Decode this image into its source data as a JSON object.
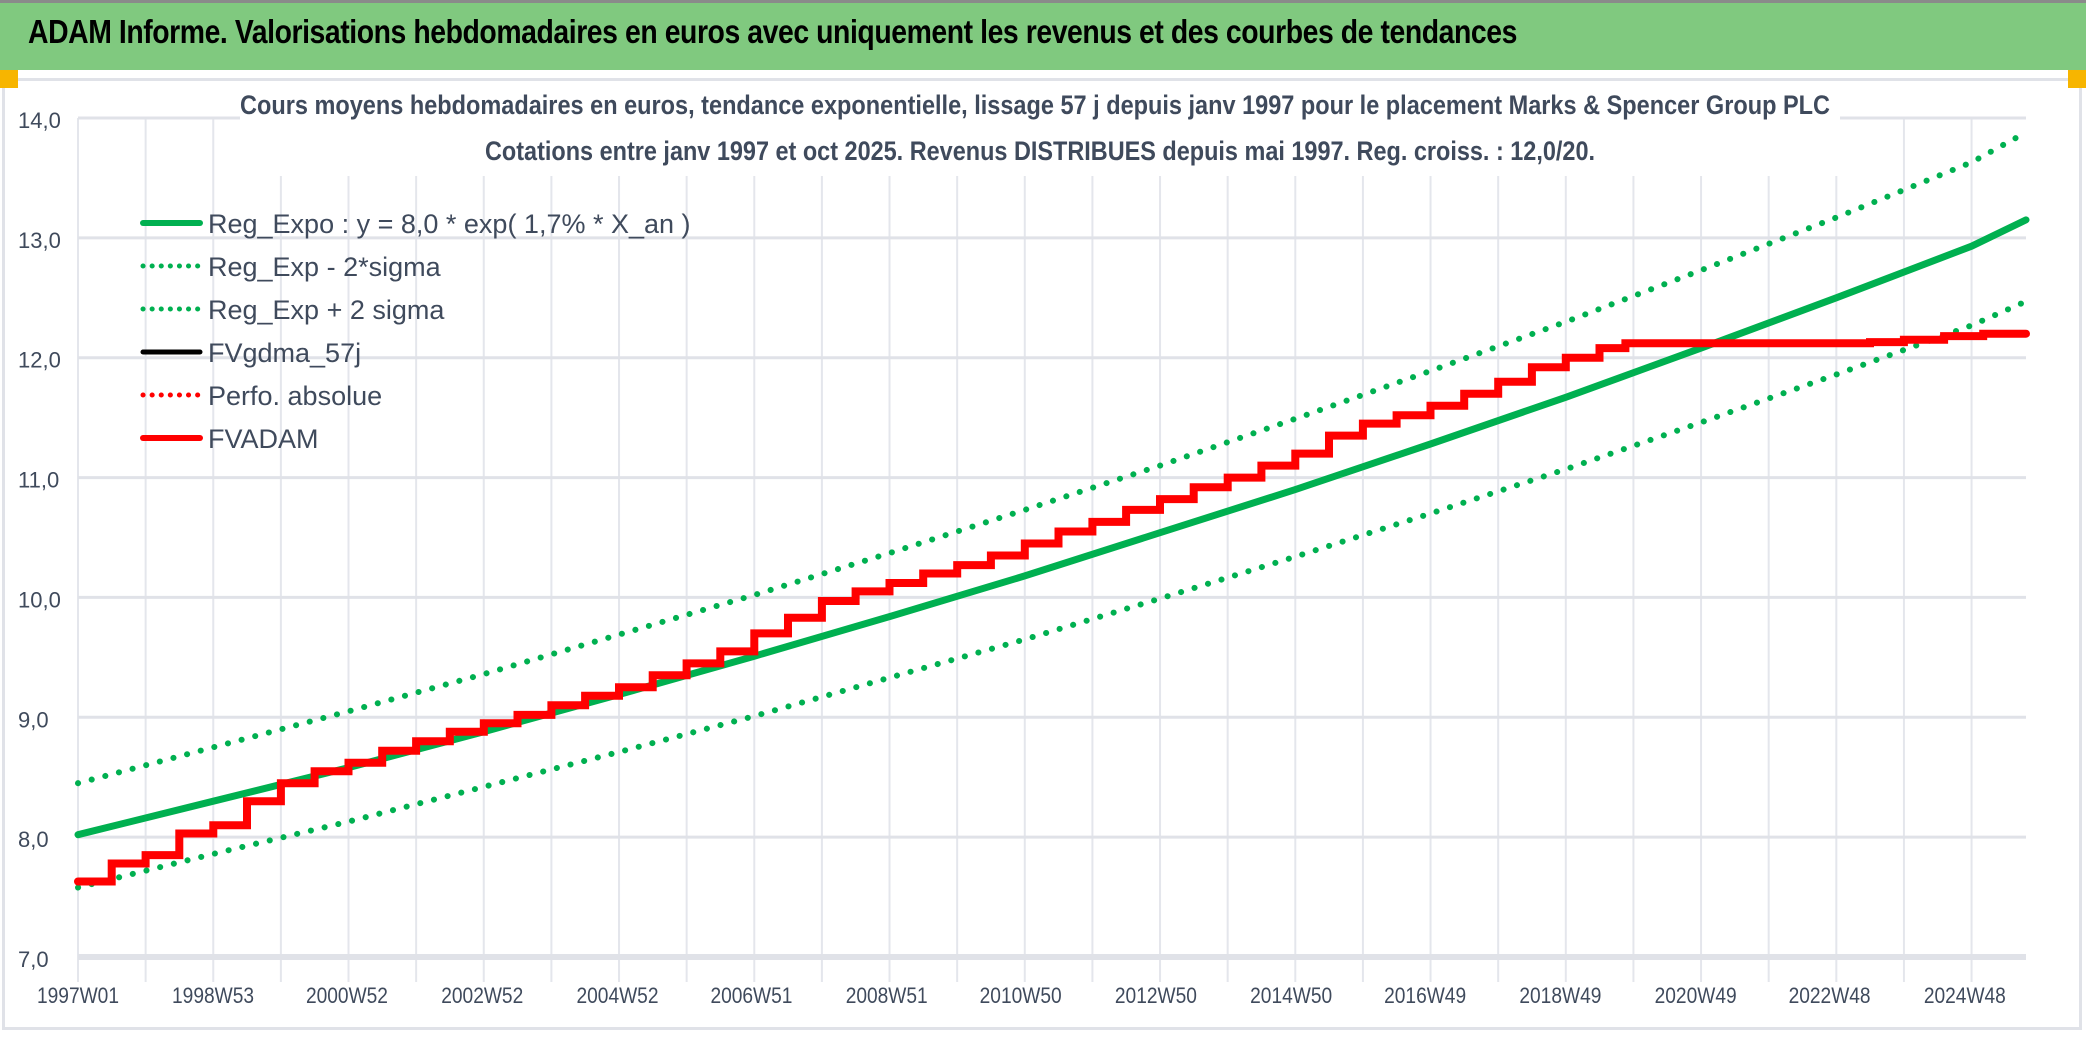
{
  "header": {
    "title": "ADAM Informe. Valorisations hebdomadaires en euros avec uniquement les revenus et des courbes de tendances"
  },
  "chart_data": {
    "type": "line",
    "title": "Cours moyens hebdomadaires en euros, tendance exponentielle, lissage 57 j depuis janv 1997 pour le placement Marks & Spencer Group PLC",
    "subtitle": "Cotations entre janv 1997 et oct 2025. Revenus DISTRIBUES depuis mai 1997. Reg. croiss. : 12,0/20.",
    "xlabel": "",
    "ylabel": "",
    "ylim": [
      7.0,
      14.0
    ],
    "xlim": [
      "1997W01",
      "2025W43"
    ],
    "y_ticks": [
      "7,0",
      "8,0",
      "9,0",
      "10,0",
      "11,0",
      "12,0",
      "13,0",
      "14,0"
    ],
    "x_ticks": [
      "1997W01",
      "1998W53",
      "2000W52",
      "2002W52",
      "2004W52",
      "2006W51",
      "2008W51",
      "2010W50",
      "2012W50",
      "2014W50",
      "2016W49",
      "2018W49",
      "2020W49",
      "2022W48",
      "2024W48"
    ],
    "grid": true,
    "legend_placement": "top-left",
    "colors": {
      "reg": "#00b050",
      "fvgdma": "#000000",
      "perfo": "#ff0000",
      "fvadam": "#ff0000",
      "title_bar": "#80c97f",
      "text": "#3f4a5c"
    },
    "series": [
      {
        "name": "Reg_Expo : y = 8,0 * exp( 1,7% *  X_an )",
        "style": "solid-thick",
        "color": "#00b050",
        "points": [
          [
            "1997W01",
            8.02
          ],
          [
            "1999W01",
            8.3
          ],
          [
            "2001W01",
            8.58
          ],
          [
            "2003W01",
            8.88
          ],
          [
            "2005W01",
            9.19
          ],
          [
            "2007W01",
            9.51
          ],
          [
            "2009W01",
            9.84
          ],
          [
            "2011W01",
            10.18
          ],
          [
            "2013W01",
            10.54
          ],
          [
            "2015W01",
            10.9
          ],
          [
            "2017W01",
            11.28
          ],
          [
            "2019W01",
            11.67
          ],
          [
            "2021W01",
            12.08
          ],
          [
            "2023W01",
            12.5
          ],
          [
            "2025W01",
            12.93
          ],
          [
            "2025W43",
            13.15
          ]
        ]
      },
      {
        "name": "Reg_Exp - 2*sigma",
        "style": "dotted",
        "color": "#00b050",
        "points": [
          [
            "1997W01",
            7.58
          ],
          [
            "1999W01",
            7.86
          ],
          [
            "2001W01",
            8.13
          ],
          [
            "2003W01",
            8.42
          ],
          [
            "2005W01",
            8.71
          ],
          [
            "2007W01",
            9.01
          ],
          [
            "2009W01",
            9.33
          ],
          [
            "2011W01",
            9.65
          ],
          [
            "2013W01",
            9.99
          ],
          [
            "2015W01",
            10.34
          ],
          [
            "2017W01",
            10.7
          ],
          [
            "2019W01",
            11.07
          ],
          [
            "2021W01",
            11.46
          ],
          [
            "2023W01",
            11.86
          ],
          [
            "2025W01",
            12.27
          ],
          [
            "2025W43",
            12.47
          ]
        ]
      },
      {
        "name": "Reg_Exp + 2 sigma",
        "style": "dotted",
        "color": "#00b050",
        "points": [
          [
            "1997W01",
            8.45
          ],
          [
            "1999W01",
            8.75
          ],
          [
            "2001W01",
            9.05
          ],
          [
            "2003W01",
            9.36
          ],
          [
            "2005W01",
            9.69
          ],
          [
            "2007W01",
            10.02
          ],
          [
            "2009W01",
            10.37
          ],
          [
            "2011W01",
            10.73
          ],
          [
            "2013W01",
            11.1
          ],
          [
            "2015W01",
            11.49
          ],
          [
            "2017W01",
            11.89
          ],
          [
            "2019W01",
            12.3
          ],
          [
            "2021W01",
            12.73
          ],
          [
            "2023W01",
            13.17
          ],
          [
            "2025W01",
            13.63
          ],
          [
            "2025W43",
            13.88
          ]
        ]
      },
      {
        "name": "FVgdma_57j",
        "style": "solid",
        "color": "#000000",
        "smoothed_of": "FVADAM"
      },
      {
        "name": "Perfo. absolue",
        "style": "dotted",
        "color": "#ff0000"
      },
      {
        "name": "FVADAM",
        "style": "step-thick",
        "color": "#ff0000",
        "points": [
          [
            "1997W01",
            7.63
          ],
          [
            "1997W27",
            7.78
          ],
          [
            "1998W01",
            7.85
          ],
          [
            "1998W27",
            8.03
          ],
          [
            "1999W01",
            8.1
          ],
          [
            "1999W27",
            8.3
          ],
          [
            "2000W01",
            8.45
          ],
          [
            "2000W27",
            8.55
          ],
          [
            "2001W01",
            8.62
          ],
          [
            "2001W27",
            8.72
          ],
          [
            "2002W01",
            8.8
          ],
          [
            "2002W27",
            8.88
          ],
          [
            "2003W01",
            8.95
          ],
          [
            "2003W27",
            9.02
          ],
          [
            "2004W01",
            9.1
          ],
          [
            "2004W27",
            9.18
          ],
          [
            "2005W01",
            9.25
          ],
          [
            "2005W27",
            9.35
          ],
          [
            "2006W01",
            9.45
          ],
          [
            "2006W27",
            9.55
          ],
          [
            "2007W01",
            9.7
          ],
          [
            "2007W27",
            9.83
          ],
          [
            "2008W01",
            9.97
          ],
          [
            "2008W27",
            10.05
          ],
          [
            "2009W01",
            10.12
          ],
          [
            "2009W27",
            10.2
          ],
          [
            "2010W01",
            10.27
          ],
          [
            "2010W27",
            10.35
          ],
          [
            "2011W01",
            10.45
          ],
          [
            "2011W27",
            10.55
          ],
          [
            "2012W01",
            10.63
          ],
          [
            "2012W27",
            10.73
          ],
          [
            "2013W01",
            10.82
          ],
          [
            "2013W27",
            10.92
          ],
          [
            "2014W01",
            11.0
          ],
          [
            "2014W27",
            11.1
          ],
          [
            "2015W01",
            11.2
          ],
          [
            "2015W27",
            11.35
          ],
          [
            "2016W01",
            11.45
          ],
          [
            "2016W27",
            11.52
          ],
          [
            "2017W01",
            11.6
          ],
          [
            "2017W27",
            11.7
          ],
          [
            "2018W01",
            11.8
          ],
          [
            "2018W27",
            11.92
          ],
          [
            "2019W01",
            12.0
          ],
          [
            "2019W27",
            12.08
          ],
          [
            "2019W47",
            12.12
          ],
          [
            "2023W27",
            12.13
          ],
          [
            "2024W01",
            12.15
          ],
          [
            "2024W32",
            12.18
          ],
          [
            "2025W10",
            12.2
          ],
          [
            "2025W43",
            12.2
          ]
        ]
      }
    ]
  }
}
